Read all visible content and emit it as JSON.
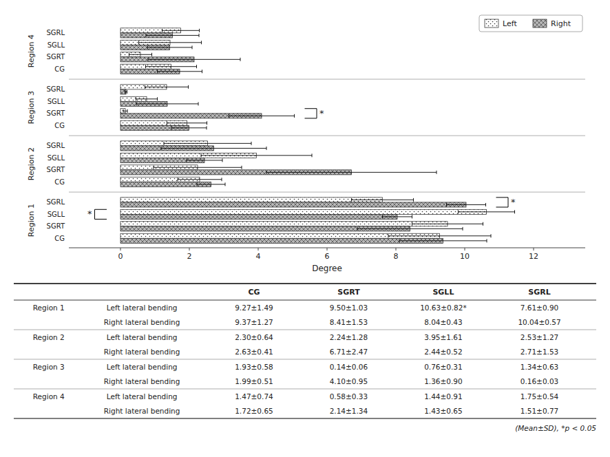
{
  "chart_data": {
    "type": "bar",
    "orientation": "horizontal",
    "xlabel": "Degree",
    "categories": [
      "CG",
      "SGRT",
      "SGLL",
      "SGRL",
      "CG",
      "SGRT",
      "SGLL",
      "SGRL",
      "CG",
      "SGRT",
      "SGLL",
      "SGRL",
      "CG",
      "SGRT",
      "SGLL",
      "SGRL"
    ],
    "groups": [
      {
        "label": "Region 1",
        "count": 4
      },
      {
        "label": "Region 2",
        "count": 4
      },
      {
        "label": "Region 3",
        "count": 4
      },
      {
        "label": "Region 4",
        "count": 4
      }
    ],
    "series": [
      {
        "name": "Left",
        "color": "#ffffff",
        "values": [
          9.27,
          9.5,
          10.63,
          7.61,
          2.3,
          2.24,
          3.95,
          2.53,
          1.93,
          0.14,
          0.76,
          1.34,
          1.47,
          0.58,
          1.44,
          1.75
        ],
        "errors": [
          1.49,
          1.03,
          0.82,
          0.9,
          0.64,
          1.28,
          1.61,
          1.27,
          0.58,
          0.06,
          0.31,
          0.63,
          0.74,
          0.33,
          0.91,
          0.54
        ]
      },
      {
        "name": "Right",
        "color": "#b8b8b8",
        "values": [
          9.37,
          8.41,
          8.04,
          10.04,
          2.63,
          6.71,
          2.44,
          2.71,
          1.99,
          4.1,
          1.36,
          0.16,
          1.72,
          2.14,
          1.43,
          1.51
        ],
        "errors": [
          1.27,
          1.53,
          0.43,
          0.57,
          0.41,
          2.47,
          0.52,
          1.53,
          0.51,
          0.95,
          0.9,
          0.03,
          0.65,
          1.34,
          0.65,
          0.77
        ]
      }
    ],
    "significance": [
      {
        "group": "Region 3",
        "category": "SGRT",
        "side": "right",
        "text": "*"
      },
      {
        "group": "Region 1",
        "category": "SGRL",
        "side": "right",
        "text": "*"
      },
      {
        "group": "Region 1",
        "category": "SGLL",
        "side": "left",
        "text": "*"
      }
    ],
    "xlim": [
      -1.5,
      13.5
    ],
    "xticks": [
      0,
      2,
      4,
      6,
      8,
      10,
      12
    ],
    "grid": false,
    "legend": "upper right",
    "table": {
      "columns": [
        "CG",
        "SGRT",
        "SGLL",
        "SGRL"
      ],
      "groups": [
        {
          "label": "Region 1",
          "rows": [
            {
              "label": "Left lateral bending",
              "cells": [
                "9.27±1.49",
                "9.50±1.03",
                "10.63±0.82*",
                "7.61±0.90"
              ]
            },
            {
              "label": "Right lateral bending",
              "cells": [
                "9.37±1.27",
                "8.41±1.53",
                "8.04±0.43",
                "10.04±0.57"
              ]
            }
          ]
        },
        {
          "label": "Region 2",
          "rows": [
            {
              "label": "Left lateral bending",
              "cells": [
                "2.30±0.64",
                "2.24±1.28",
                "3.95±1.61",
                "2.53±1.27"
              ]
            },
            {
              "label": "Right lateral bending",
              "cells": [
                "2.63±0.41",
                "6.71±2.47",
                "2.44±0.52",
                "2.71±1.53"
              ]
            }
          ]
        },
        {
          "label": "Region 3",
          "rows": [
            {
              "label": "Left lateral bending",
              "cells": [
                "1.93±0.58",
                "0.14±0.06",
                "0.76±0.31",
                "1.34±0.63"
              ]
            },
            {
              "label": "Right lateral bending",
              "cells": [
                "1.99±0.51",
                "4.10±0.95",
                "1.36±0.90",
                "0.16±0.03"
              ]
            }
          ]
        },
        {
          "label": "Region 4",
          "rows": [
            {
              "label": "Left lateral bending",
              "cells": [
                "1.47±0.74",
                "0.58±0.33",
                "1.44±0.91",
                "1.75±0.54"
              ]
            },
            {
              "label": "Right lateral bending",
              "cells": [
                "1.72±0.65",
                "2.14±1.34",
                "1.43±0.65",
                "1.51±0.77"
              ]
            }
          ]
        }
      ],
      "note": "(Mean±SD),  *p < 0.05"
    }
  }
}
